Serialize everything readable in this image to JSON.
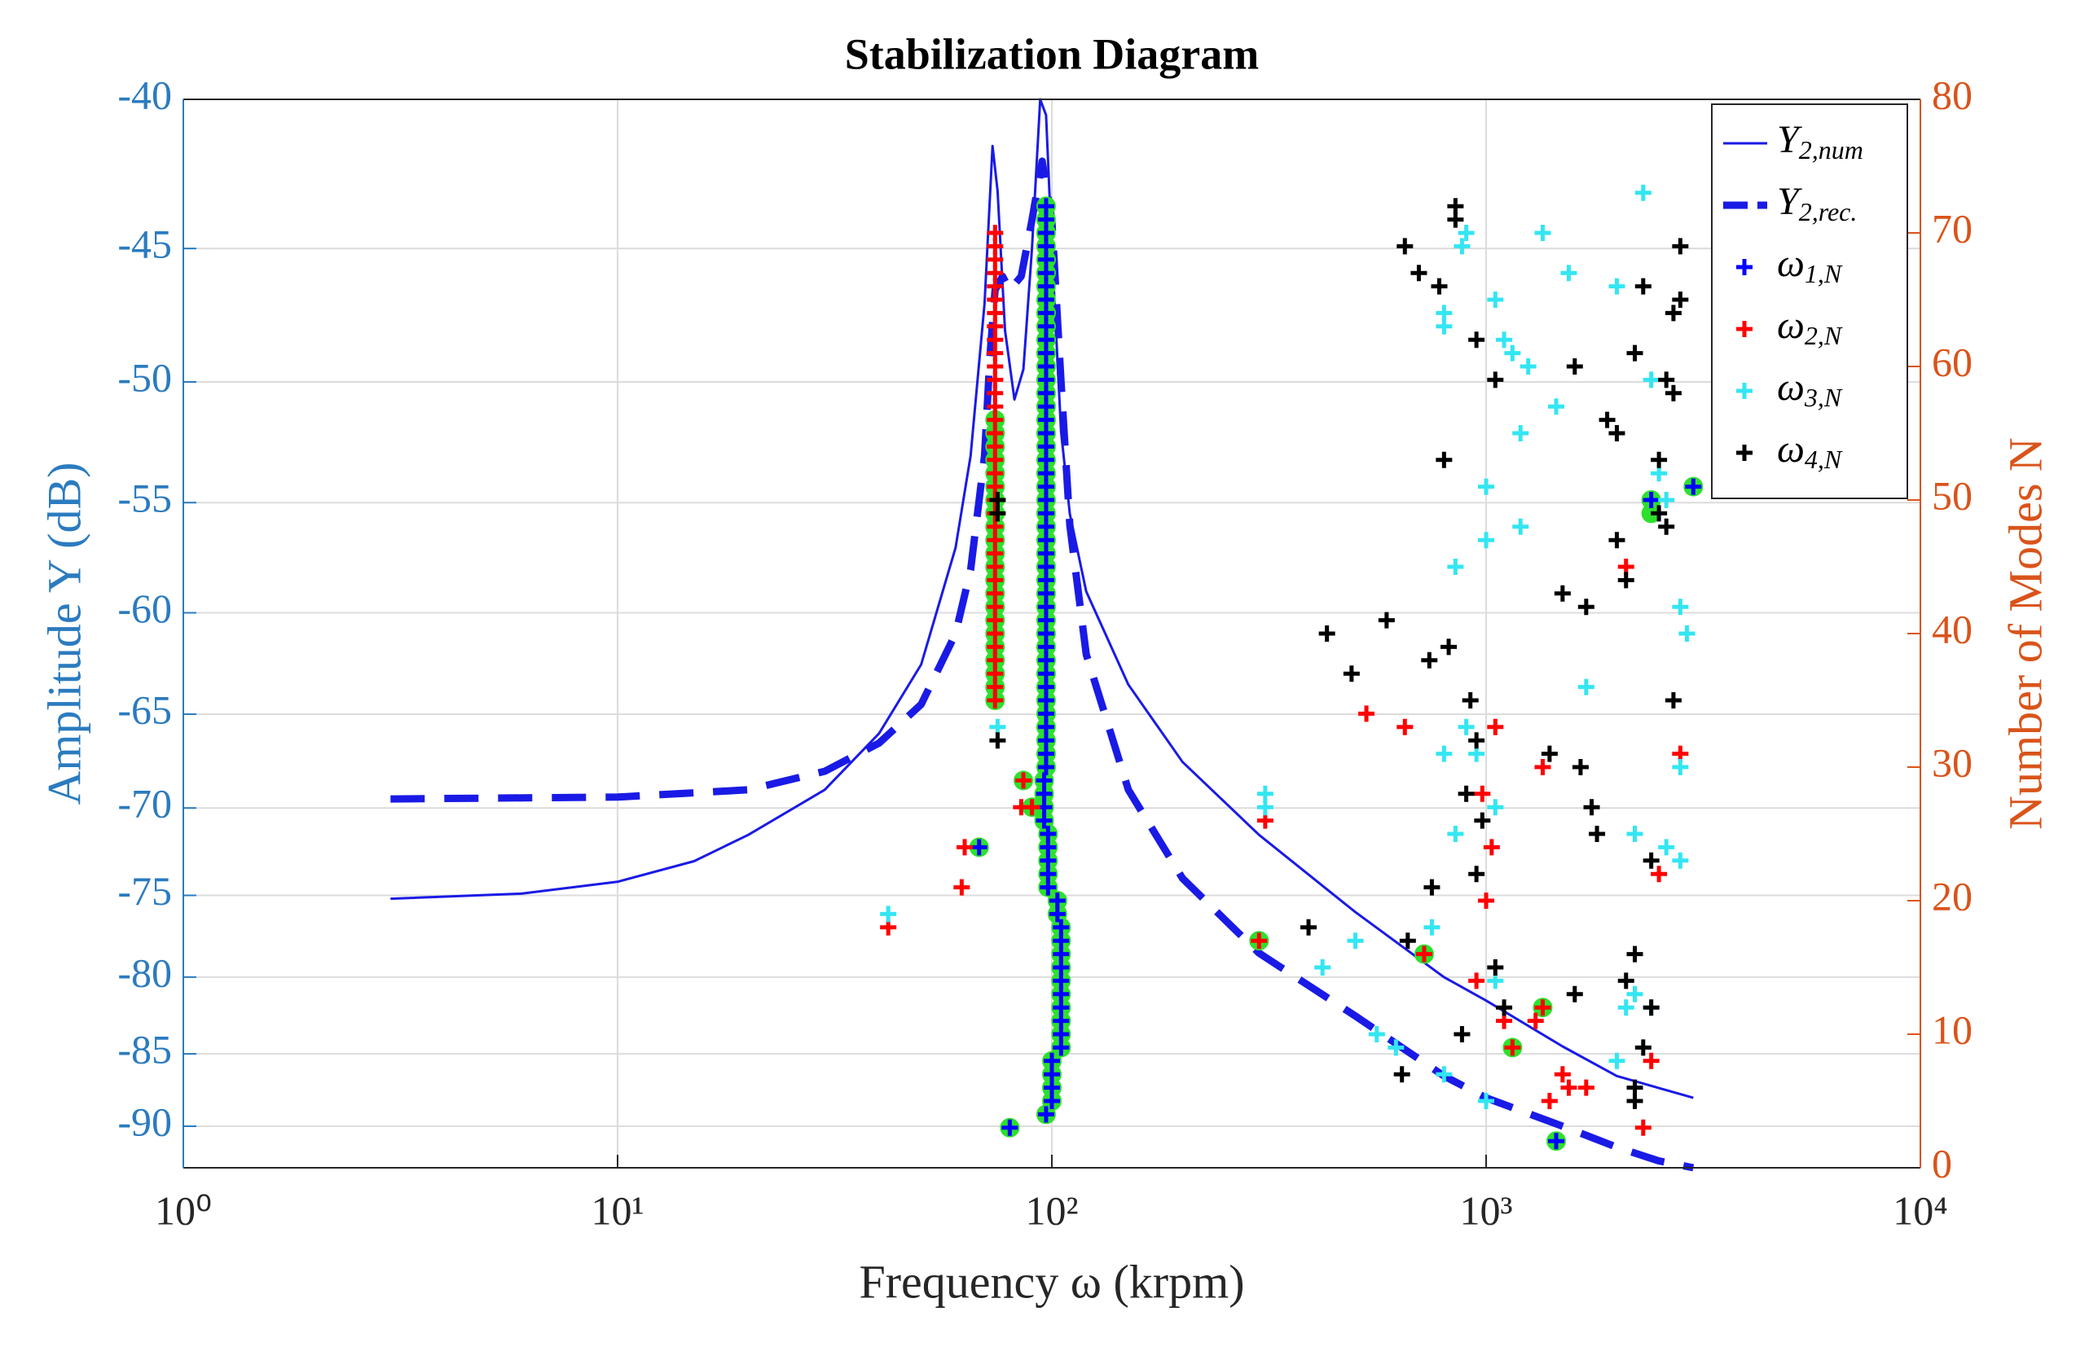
{
  "chart_data": {
    "type": "line",
    "title": "Stabilization Diagram",
    "xlabel": "Frequency ω (krpm)",
    "ylabel": "Amplitude Y (dB)",
    "y2label": "Number of Modes N",
    "xscale": "log",
    "yscale": "log",
    "xlim": [
      1,
      10000
    ],
    "xticks": [
      {
        "value": 1,
        "label": "10⁰"
      },
      {
        "value": 10,
        "label": "10¹"
      },
      {
        "value": 100,
        "label": "10²"
      },
      {
        "value": 1000,
        "label": "10³"
      },
      {
        "value": 10000,
        "label": "10⁴"
      }
    ],
    "ylim": [
      -93,
      -40
    ],
    "yticks": [
      -40,
      -45,
      -50,
      -55,
      -60,
      -65,
      -70,
      -75,
      -80,
      -85,
      -90
    ],
    "y2lim": [
      0,
      80
    ],
    "y2ticks": [
      0,
      10,
      20,
      30,
      40,
      50,
      60,
      70,
      80
    ],
    "ycolor": "#2b7bbf",
    "y2color": "#d9541a",
    "grid": true,
    "legend": "northeast",
    "series": [
      {
        "name": "Y",
        "name_sub": "2,num",
        "type": "line",
        "style": "solid",
        "color": "#1a1ae6",
        "x": [
          3,
          6,
          10,
          15,
          20,
          30,
          40,
          50,
          60,
          65,
          70,
          73,
          75,
          78,
          82,
          86,
          90,
          94,
          97,
          100,
          105,
          110,
          120,
          150,
          200,
          300,
          500,
          800,
          1000,
          1500,
          2000,
          3000
        ],
        "values": [
          -75.2,
          -74.9,
          -74.2,
          -73,
          -71.5,
          -69,
          -66,
          -62.5,
          -57,
          -53,
          -47,
          -41.5,
          -43,
          -48,
          -50.7,
          -49.5,
          -45,
          -40,
          -40.5,
          -45,
          -52,
          -55.5,
          -59,
          -63.5,
          -67.5,
          -71.5,
          -76,
          -80,
          -81.5,
          -84.5,
          -86.5,
          -88
        ]
      },
      {
        "name": "Y",
        "name_sub": "2,rec.",
        "type": "line",
        "style": "dashed",
        "color": "#1a1ae6",
        "x": [
          3,
          10,
          20,
          30,
          40,
          50,
          60,
          65,
          70,
          72,
          74,
          77,
          80,
          85,
          90,
          95,
          100,
          105,
          110,
          120,
          150,
          200,
          300,
          500,
          800,
          1000,
          1500,
          2000,
          2500,
          3000
        ],
        "values": [
          -69.5,
          -69.4,
          -69,
          -68,
          -66.5,
          -64.5,
          -61,
          -58,
          -53,
          -49,
          -46.5,
          -46,
          -46.5,
          -46,
          -44,
          -42,
          -44,
          -50,
          -56,
          -62,
          -69,
          -74,
          -78.5,
          -82.5,
          -86.5,
          -88,
          -90,
          -91.5,
          -92.5,
          -93
        ]
      },
      {
        "type": "scatter",
        "marker": "circle",
        "color": "#2ee02e",
        "axis": "y2",
        "x": [
          68,
          80,
          97,
          100,
          100,
          100,
          100,
          105,
          105,
          105,
          105,
          105,
          105,
          105,
          105,
          105,
          105,
          103,
          103,
          98,
          98,
          98,
          98,
          98,
          96,
          96,
          96,
          96,
          97,
          97,
          97,
          97,
          97,
          97,
          97,
          97,
          97,
          97,
          97,
          97,
          97,
          97,
          97,
          97,
          97,
          97,
          97,
          97,
          97,
          97,
          97,
          97,
          97,
          97,
          97,
          97,
          97,
          97,
          97,
          97,
          97,
          97,
          97,
          97,
          97,
          97,
          97,
          97,
          97,
          97,
          97,
          1450,
          3000,
          2400,
          74,
          74,
          74,
          74,
          74,
          74,
          74,
          74,
          74,
          74,
          74,
          74,
          74,
          74,
          74,
          74,
          74,
          74,
          74,
          74,
          74,
          74,
          86,
          90,
          300,
          720,
          1150,
          1350,
          2400
        ],
        "values": [
          24,
          3,
          4,
          5,
          6,
          7,
          8,
          9,
          10,
          11,
          12,
          13,
          14,
          15,
          16,
          17,
          18,
          19,
          20,
          21,
          22,
          23,
          24,
          25,
          26,
          27,
          28,
          29,
          30,
          31,
          32,
          33,
          34,
          35,
          36,
          37,
          38,
          39,
          40,
          41,
          42,
          43,
          44,
          45,
          46,
          47,
          48,
          49,
          50,
          51,
          52,
          53,
          54,
          55,
          56,
          57,
          58,
          59,
          60,
          61,
          62,
          63,
          64,
          65,
          66,
          67,
          68,
          69,
          70,
          71,
          72,
          2,
          51,
          50,
          35,
          36,
          37,
          38,
          39,
          40,
          41,
          42,
          43,
          44,
          45,
          46,
          47,
          48,
          49,
          50,
          51,
          52,
          53,
          54,
          55,
          56,
          29,
          27,
          17,
          16,
          9,
          12,
          49
        ]
      },
      {
        "name": "ω",
        "name_sub": "1,N",
        "type": "scatter",
        "marker": "plus",
        "color": "#0000ff",
        "axis": "y2",
        "x": [
          68,
          80,
          97,
          100,
          100,
          100,
          100,
          105,
          105,
          105,
          105,
          105,
          105,
          105,
          105,
          105,
          105,
          103,
          103,
          98,
          98,
          98,
          98,
          98,
          96,
          96,
          96,
          96,
          97,
          97,
          97,
          97,
          97,
          97,
          97,
          97,
          97,
          97,
          97,
          97,
          97,
          97,
          97,
          97,
          97,
          97,
          97,
          97,
          97,
          97,
          97,
          97,
          97,
          97,
          97,
          97,
          97,
          97,
          97,
          97,
          97,
          97,
          97,
          97,
          97,
          97,
          97,
          97,
          97,
          97,
          97,
          1450,
          3000,
          2400
        ],
        "values": [
          24,
          3,
          4,
          5,
          6,
          7,
          8,
          9,
          10,
          11,
          12,
          13,
          14,
          15,
          16,
          17,
          18,
          19,
          20,
          21,
          22,
          23,
          24,
          25,
          26,
          27,
          28,
          29,
          30,
          31,
          32,
          33,
          34,
          35,
          36,
          37,
          38,
          39,
          40,
          41,
          42,
          43,
          44,
          45,
          46,
          47,
          48,
          49,
          50,
          51,
          52,
          53,
          54,
          55,
          56,
          57,
          58,
          59,
          60,
          61,
          62,
          63,
          64,
          65,
          66,
          67,
          68,
          69,
          70,
          71,
          72,
          2,
          51,
          50
        ]
      },
      {
        "name": "ω",
        "name_sub": "2,N",
        "type": "scatter",
        "marker": "plus",
        "color": "#ff0000",
        "axis": "y2",
        "x": [
          74,
          74,
          74,
          74,
          74,
          74,
          74,
          74,
          74,
          74,
          74,
          74,
          74,
          74,
          74,
          74,
          74,
          74,
          74,
          74,
          74,
          74,
          74,
          74,
          74,
          74,
          74,
          74,
          74,
          74,
          74,
          74,
          74,
          74,
          74,
          74,
          42,
          63,
          62,
          86,
          90,
          85,
          300,
          310,
          530,
          650,
          720,
          950,
          980,
          1000,
          1030,
          1050,
          1100,
          1150,
          1300,
          1350,
          1350,
          1400,
          1500,
          1550,
          1700,
          2100,
          2300,
          2400,
          2500,
          2800
        ],
        "values": [
          35,
          36,
          37,
          38,
          39,
          40,
          41,
          42,
          43,
          44,
          45,
          46,
          47,
          48,
          49,
          50,
          51,
          52,
          53,
          54,
          55,
          56,
          57,
          58,
          59,
          60,
          61,
          62,
          63,
          64,
          65,
          66,
          67,
          68,
          69,
          70,
          18,
          24,
          21,
          29,
          27,
          27,
          17,
          26,
          34,
          33,
          16,
          14,
          28,
          20,
          24,
          33,
          11,
          9,
          11,
          12,
          30,
          5,
          7,
          6,
          6,
          45,
          3,
          8,
          22,
          31
        ]
      },
      {
        "name": "ω",
        "name_sub": "3,N",
        "type": "scatter",
        "marker": "plus",
        "color": "#33e6f2",
        "axis": "y2",
        "x": [
          42,
          75,
          75,
          310,
          310,
          420,
          500,
          560,
          620,
          800,
          900,
          880,
          800,
          800,
          850,
          1000,
          1000,
          1050,
          1100,
          1150,
          1200,
          1250,
          1200,
          1350,
          1450,
          1550,
          1700,
          1000,
          900,
          950,
          1050,
          2000,
          2000,
          2200,
          2300,
          2400,
          2500,
          2600,
          2800,
          2800,
          2900,
          2800,
          2600,
          2400,
          2200,
          2100,
          1050,
          850,
          800,
          750
        ],
        "values": [
          19,
          33,
          50,
          27,
          28,
          15,
          17,
          10,
          9,
          7,
          70,
          69,
          64,
          63,
          45,
          51,
          47,
          65,
          62,
          61,
          55,
          60,
          48,
          70,
          57,
          67,
          36,
          5,
          33,
          31,
          27,
          8,
          66,
          25,
          73,
          59,
          52,
          50,
          42,
          30,
          40,
          23,
          24,
          12,
          13,
          12,
          14,
          25,
          31,
          18
        ]
      },
      {
        "name": "ω",
        "name_sub": "4,N",
        "type": "scatter",
        "marker": "plus",
        "color": "#000000",
        "axis": "y2",
        "x": [
          75,
          75,
          75,
          390,
          430,
          490,
          590,
          640,
          660,
          650,
          700,
          750,
          740,
          780,
          800,
          820,
          850,
          850,
          880,
          900,
          920,
          950,
          950,
          950,
          980,
          1050,
          1050,
          1100,
          1400,
          1500,
          1600,
          1600,
          1650,
          1700,
          1750,
          1800,
          1900,
          2000,
          2000,
          2100,
          2100,
          2200,
          2200,
          2200,
          2300,
          2400,
          2400,
          2500,
          2500,
          2600,
          2600,
          2700,
          2700,
          2700,
          2800,
          2800,
          2200,
          2300
        ],
        "values": [
          32,
          49,
          50,
          18,
          40,
          37,
          41,
          7,
          17,
          69,
          67,
          21,
          38,
          66,
          53,
          39,
          71,
          72,
          10,
          28,
          35,
          62,
          22,
          32,
          26,
          59,
          15,
          12,
          31,
          43,
          60,
          13,
          30,
          42,
          27,
          25,
          56,
          47,
          55,
          44,
          14,
          61,
          6,
          5,
          66,
          12,
          23,
          53,
          49,
          59,
          48,
          58,
          35,
          64,
          69,
          65,
          16,
          9
        ]
      }
    ]
  }
}
